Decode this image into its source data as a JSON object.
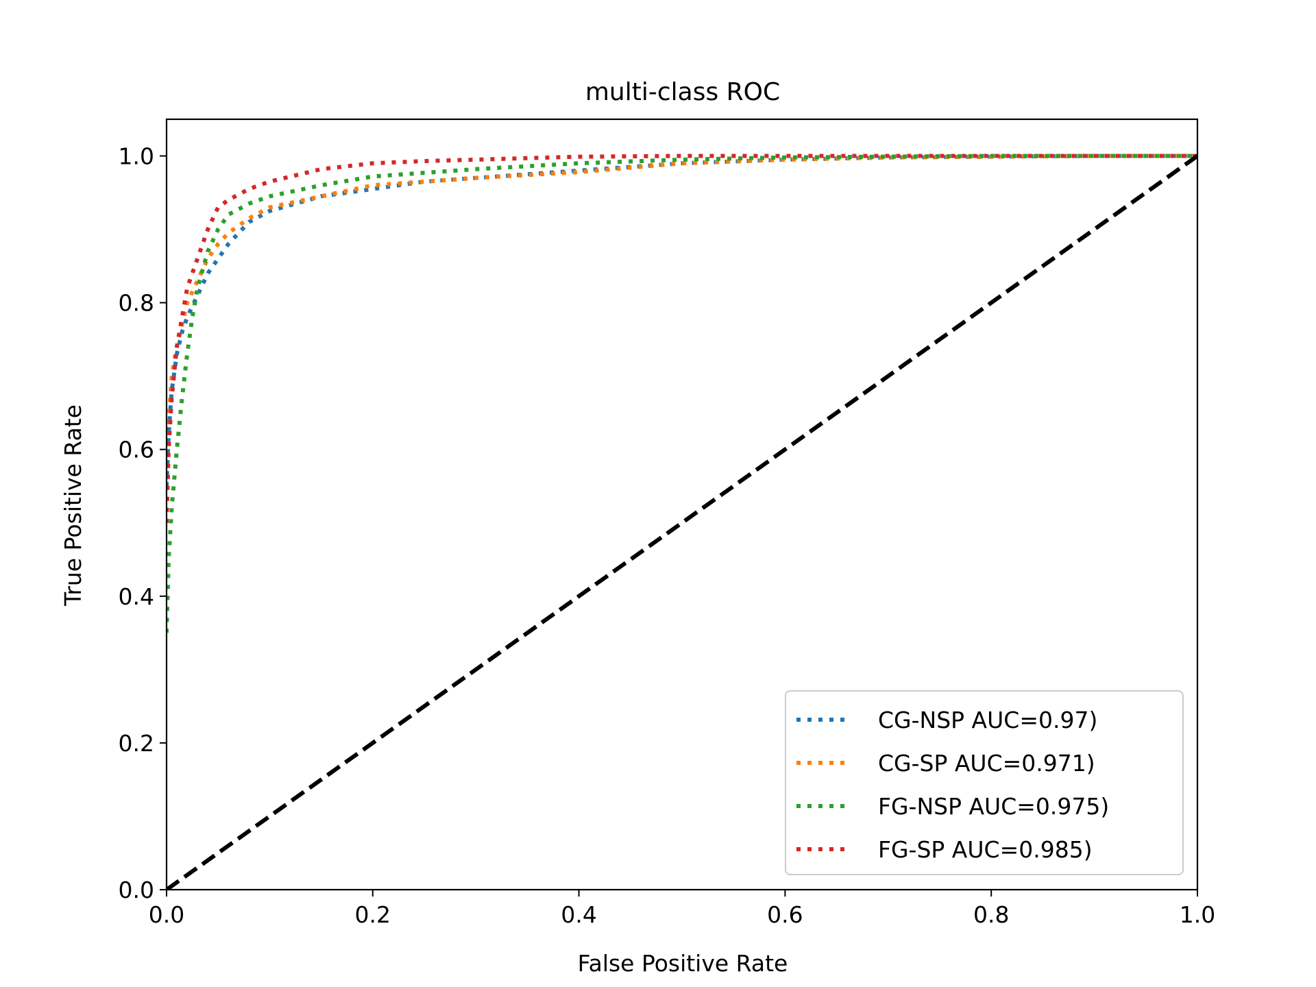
{
  "chart_data": {
    "type": "line",
    "title": "multi-class ROC",
    "xlabel": "False Positive Rate",
    "ylabel": "True Positive Rate",
    "xlim": [
      0.0,
      1.0
    ],
    "ylim": [
      0.0,
      1.05
    ],
    "xticks": [
      0.0,
      0.2,
      0.4,
      0.6,
      0.8,
      1.0
    ],
    "xtick_labels": [
      "0.0",
      "0.2",
      "0.4",
      "0.6",
      "0.8",
      "1.0"
    ],
    "yticks": [
      0.0,
      0.2,
      0.4,
      0.6,
      0.8,
      1.0
    ],
    "ytick_labels": [
      "0.0",
      "0.2",
      "0.4",
      "0.6",
      "0.8",
      "1.0"
    ],
    "grid": false,
    "legend_position": "lower-right",
    "series": [
      {
        "name": "CG-NSP AUC=0.97)",
        "color": "#1f77b4",
        "style": "dotted",
        "x": [
          0.0,
          0.002,
          0.005,
          0.01,
          0.015,
          0.02,
          0.03,
          0.04,
          0.05,
          0.06,
          0.08,
          0.1,
          0.15,
          0.2,
          0.25,
          0.3,
          0.4,
          0.5,
          0.6,
          0.7,
          0.8,
          0.9,
          1.0
        ],
        "y": [
          0.55,
          0.62,
          0.68,
          0.73,
          0.76,
          0.78,
          0.81,
          0.84,
          0.86,
          0.88,
          0.91,
          0.925,
          0.945,
          0.955,
          0.965,
          0.97,
          0.98,
          0.99,
          0.995,
          0.998,
          0.999,
          1.0,
          1.0
        ]
      },
      {
        "name": "CG-SP AUC=0.971)",
        "color": "#ff7f0e",
        "style": "dotted",
        "x": [
          0.0,
          0.002,
          0.005,
          0.01,
          0.015,
          0.02,
          0.03,
          0.04,
          0.05,
          0.06,
          0.08,
          0.1,
          0.15,
          0.2,
          0.25,
          0.3,
          0.4,
          0.5,
          0.6,
          0.7,
          0.8,
          0.9,
          1.0
        ],
        "y": [
          0.56,
          0.64,
          0.7,
          0.74,
          0.77,
          0.8,
          0.83,
          0.86,
          0.88,
          0.895,
          0.915,
          0.93,
          0.945,
          0.96,
          0.965,
          0.97,
          0.978,
          0.99,
          0.995,
          0.998,
          0.999,
          1.0,
          1.0
        ]
      },
      {
        "name": "FG-NSP AUC=0.975)",
        "color": "#2ca02c",
        "style": "dotted",
        "x": [
          0.0,
          0.002,
          0.005,
          0.01,
          0.015,
          0.02,
          0.025,
          0.03,
          0.04,
          0.05,
          0.06,
          0.08,
          0.1,
          0.15,
          0.2,
          0.3,
          0.4,
          0.5,
          0.6,
          0.7,
          0.8,
          0.9,
          1.0
        ],
        "y": [
          0.35,
          0.45,
          0.52,
          0.6,
          0.67,
          0.73,
          0.78,
          0.82,
          0.87,
          0.9,
          0.92,
          0.935,
          0.945,
          0.96,
          0.972,
          0.982,
          0.99,
          0.995,
          0.998,
          0.999,
          1.0,
          1.0,
          1.0
        ]
      },
      {
        "name": "FG-SP AUC=0.985)",
        "color": "#d62728",
        "style": "dotted",
        "x": [
          0.0,
          0.002,
          0.005,
          0.01,
          0.015,
          0.02,
          0.03,
          0.04,
          0.05,
          0.06,
          0.08,
          0.1,
          0.15,
          0.2,
          0.25,
          0.3,
          0.4,
          0.5,
          0.6,
          0.7,
          0.8,
          0.9,
          1.0
        ],
        "y": [
          0.5,
          0.6,
          0.67,
          0.74,
          0.78,
          0.82,
          0.86,
          0.9,
          0.93,
          0.94,
          0.955,
          0.965,
          0.982,
          0.99,
          0.993,
          0.995,
          0.999,
          1.0,
          1.0,
          1.0,
          1.0,
          1.0,
          1.0
        ]
      }
    ],
    "reference_line": {
      "x": [
        0.0,
        1.0
      ],
      "y": [
        0.0,
        1.0
      ],
      "color": "#000000",
      "style": "dashed"
    }
  }
}
